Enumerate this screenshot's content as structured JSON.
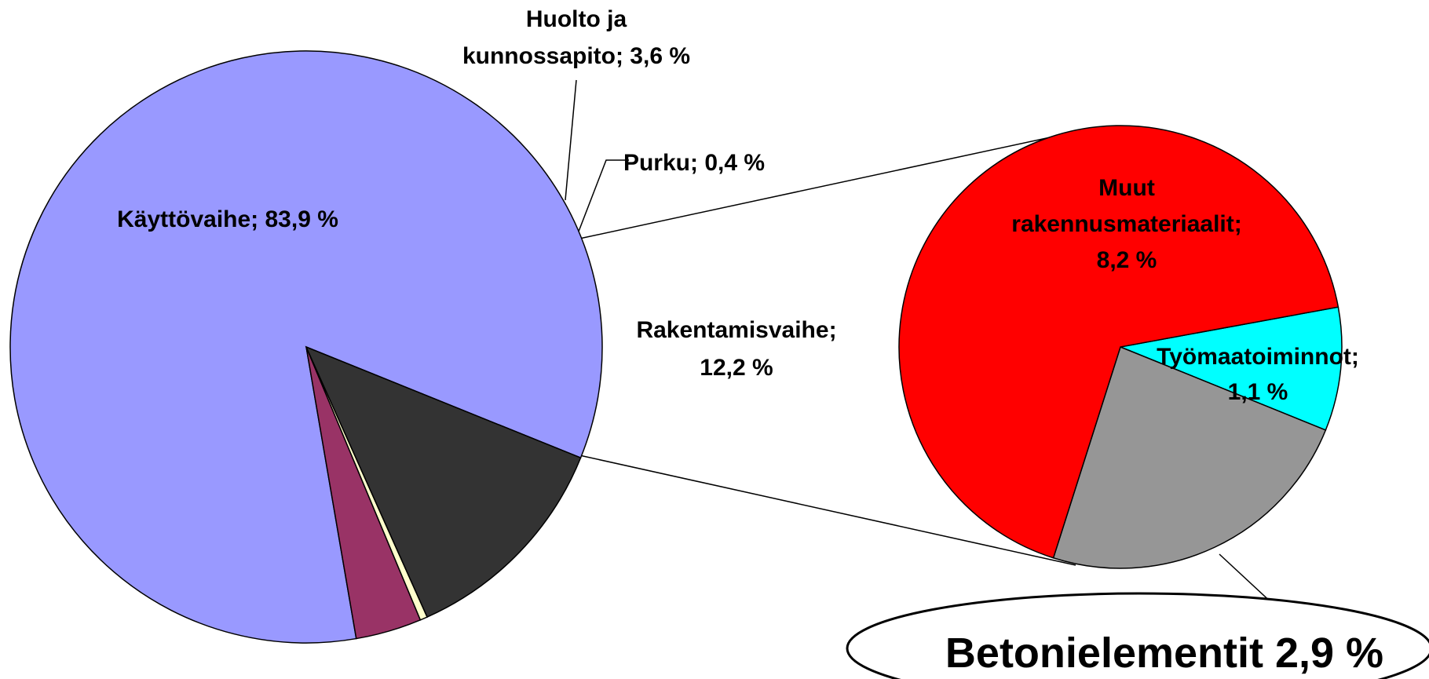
{
  "chart_data": [
    {
      "type": "pie",
      "values": [
        83.9,
        3.6,
        0.4,
        12.2
      ],
      "value_labels": [
        [
          "Käyttövaihe; 83,9 %"
        ],
        [
          "Huolto ja",
          "kunnossapito; 3,6 %"
        ],
        [
          "Purku; 0,4 %"
        ],
        [
          "Rakentamisvaihe;",
          "12,2 %"
        ]
      ],
      "colors": [
        "#9999ff",
        "#993366",
        "#ffffcc",
        "#333333"
      ]
    },
    {
      "type": "pie",
      "values": [
        1.1,
        2.9,
        8.2
      ],
      "value_labels": [
        [
          "Työmaatoiminnot;",
          "1,1 %"
        ],
        [
          "Betonielementit 2,9 %"
        ],
        [
          "Muut",
          "rakennusmateriaalit;",
          "8,2 %"
        ]
      ],
      "colors": [
        "#00ffff",
        "#969696",
        "#ff0000"
      ]
    }
  ]
}
